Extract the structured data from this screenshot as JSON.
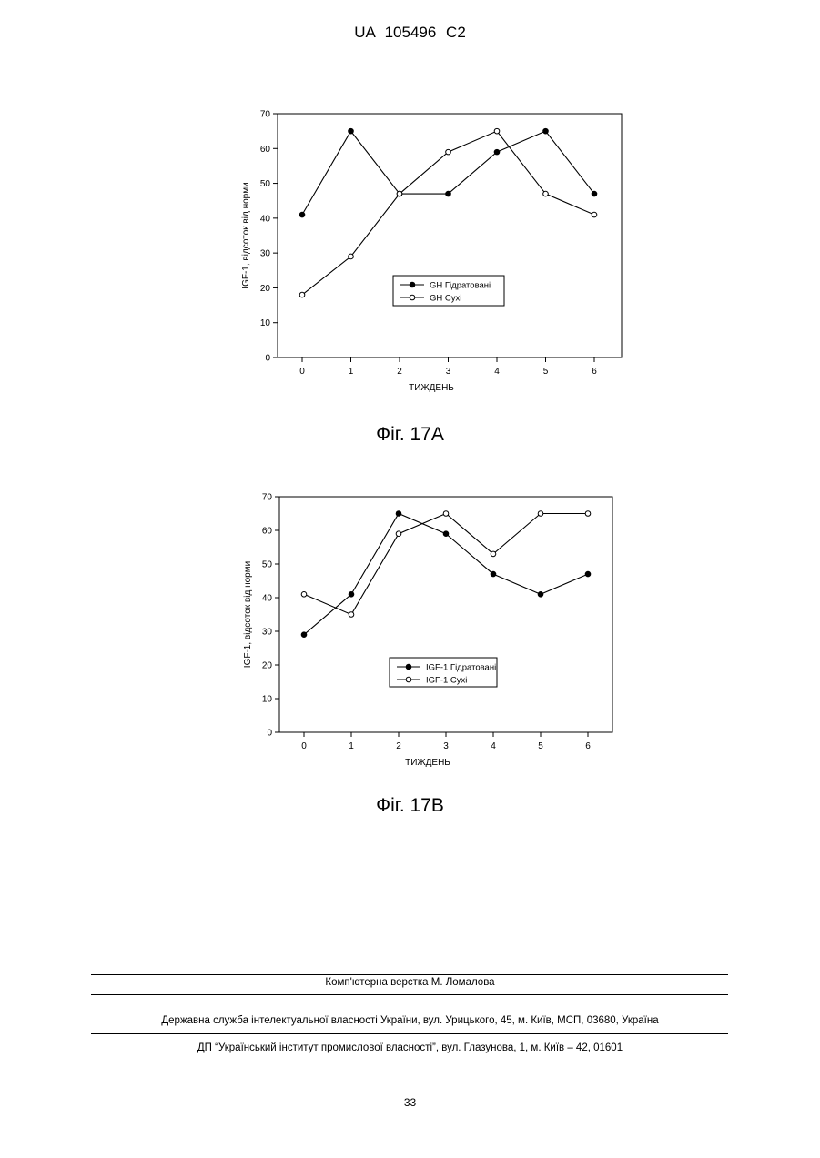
{
  "header": {
    "text": "UA 105496 C2"
  },
  "chart_data": [
    {
      "type": "line",
      "x": [
        0,
        1,
        2,
        3,
        4,
        5,
        6
      ],
      "series": [
        {
          "name": "GH Гідратовані",
          "marker": "filled",
          "values": [
            41,
            65,
            47,
            47,
            59,
            65,
            47
          ]
        },
        {
          "name": "GH Сухі",
          "marker": "open",
          "values": [
            18,
            29,
            47,
            59,
            65,
            47,
            41
          ]
        }
      ],
      "xlabel": "ТИЖДЕНЬ",
      "ylabel": "IGF-1, відсоток від норми",
      "ylim": [
        0,
        70
      ],
      "yticks": [
        0,
        10,
        20,
        30,
        40,
        50,
        60,
        70
      ],
      "xticks": [
        0,
        1,
        2,
        3,
        4,
        5,
        6
      ],
      "grid": false,
      "legend": "lower-right"
    },
    {
      "type": "line",
      "x": [
        0,
        1,
        2,
        3,
        4,
        5,
        6
      ],
      "series": [
        {
          "name": "IGF-1 Гідратовані",
          "marker": "filled",
          "values": [
            29,
            41,
            65,
            59,
            47,
            41,
            47
          ]
        },
        {
          "name": "IGF-1 Сухі",
          "marker": "open",
          "values": [
            41,
            35,
            59,
            65,
            53,
            65,
            65
          ]
        }
      ],
      "xlabel": "ТИЖДЕНЬ",
      "ylabel": "IGF-1, відсоток від норми",
      "ylim": [
        0,
        70
      ],
      "yticks": [
        0,
        10,
        20,
        30,
        40,
        50,
        60,
        70
      ],
      "xticks": [
        0,
        1,
        2,
        3,
        4,
        5,
        6
      ],
      "grid": false,
      "legend": "lower-right"
    }
  ],
  "figures": [
    {
      "caption": "Фіг. 17А"
    },
    {
      "caption": "Фіг. 17В"
    }
  ],
  "footer": {
    "layout": "Комп'ютерна верстка М. Ломалова",
    "agency": "Державна служба інтелектуальної власності України, вул. Урицького, 45, м. Київ, МСП, 03680, Україна",
    "institute": "ДП “Український інститут промислової власності”, вул. Глазунова, 1, м. Київ – 42, 01601"
  },
  "page_number": "33"
}
